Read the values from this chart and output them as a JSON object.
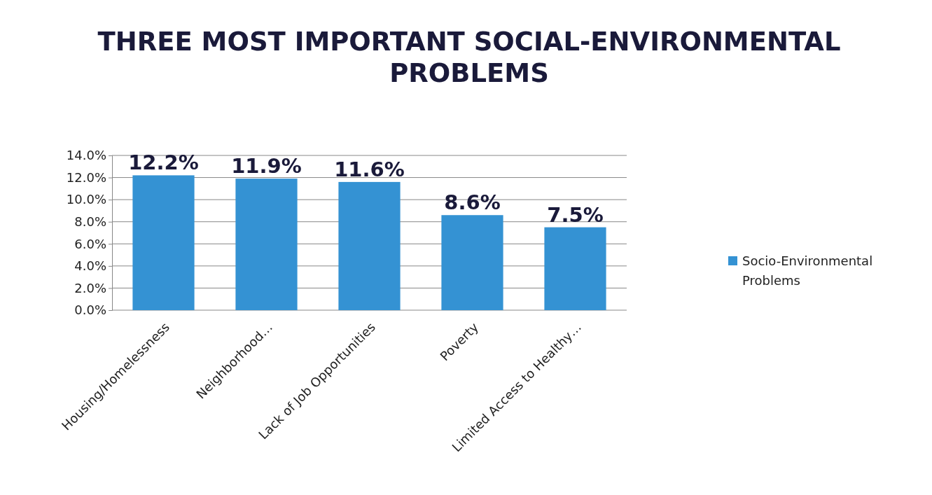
{
  "chart_data": {
    "type": "bar",
    "title": "THREE MOST IMPORTANT SOCIAL-ENVIRONMENTAL PROBLEMS",
    "categories": [
      "Housing/Homelessness",
      "Neighborhood…",
      "Lack of Job Opportunities",
      "Poverty",
      "Limited Access to Healthy…"
    ],
    "series": [
      {
        "name": "Socio-Environmental Problems",
        "color": "#3492d3",
        "values": [
          12.2,
          11.9,
          11.6,
          8.6,
          7.5
        ],
        "value_labels": [
          "12.2%",
          "11.9%",
          "11.6%",
          "8.6%",
          "7.5%"
        ]
      }
    ],
    "ylim": [
      0,
      14
    ],
    "yticks": [
      {
        "value": 0,
        "label": "0.0%"
      },
      {
        "value": 2,
        "label": "2.0%"
      },
      {
        "value": 4,
        "label": "4.0%"
      },
      {
        "value": 6,
        "label": "6.0%"
      },
      {
        "value": 8,
        "label": "8.0%"
      },
      {
        "value": 10,
        "label": "10.0%"
      },
      {
        "value": 12,
        "label": "12.0%"
      },
      {
        "value": 14,
        "label": "14.0%"
      }
    ],
    "grid": "y",
    "legend": "right"
  }
}
